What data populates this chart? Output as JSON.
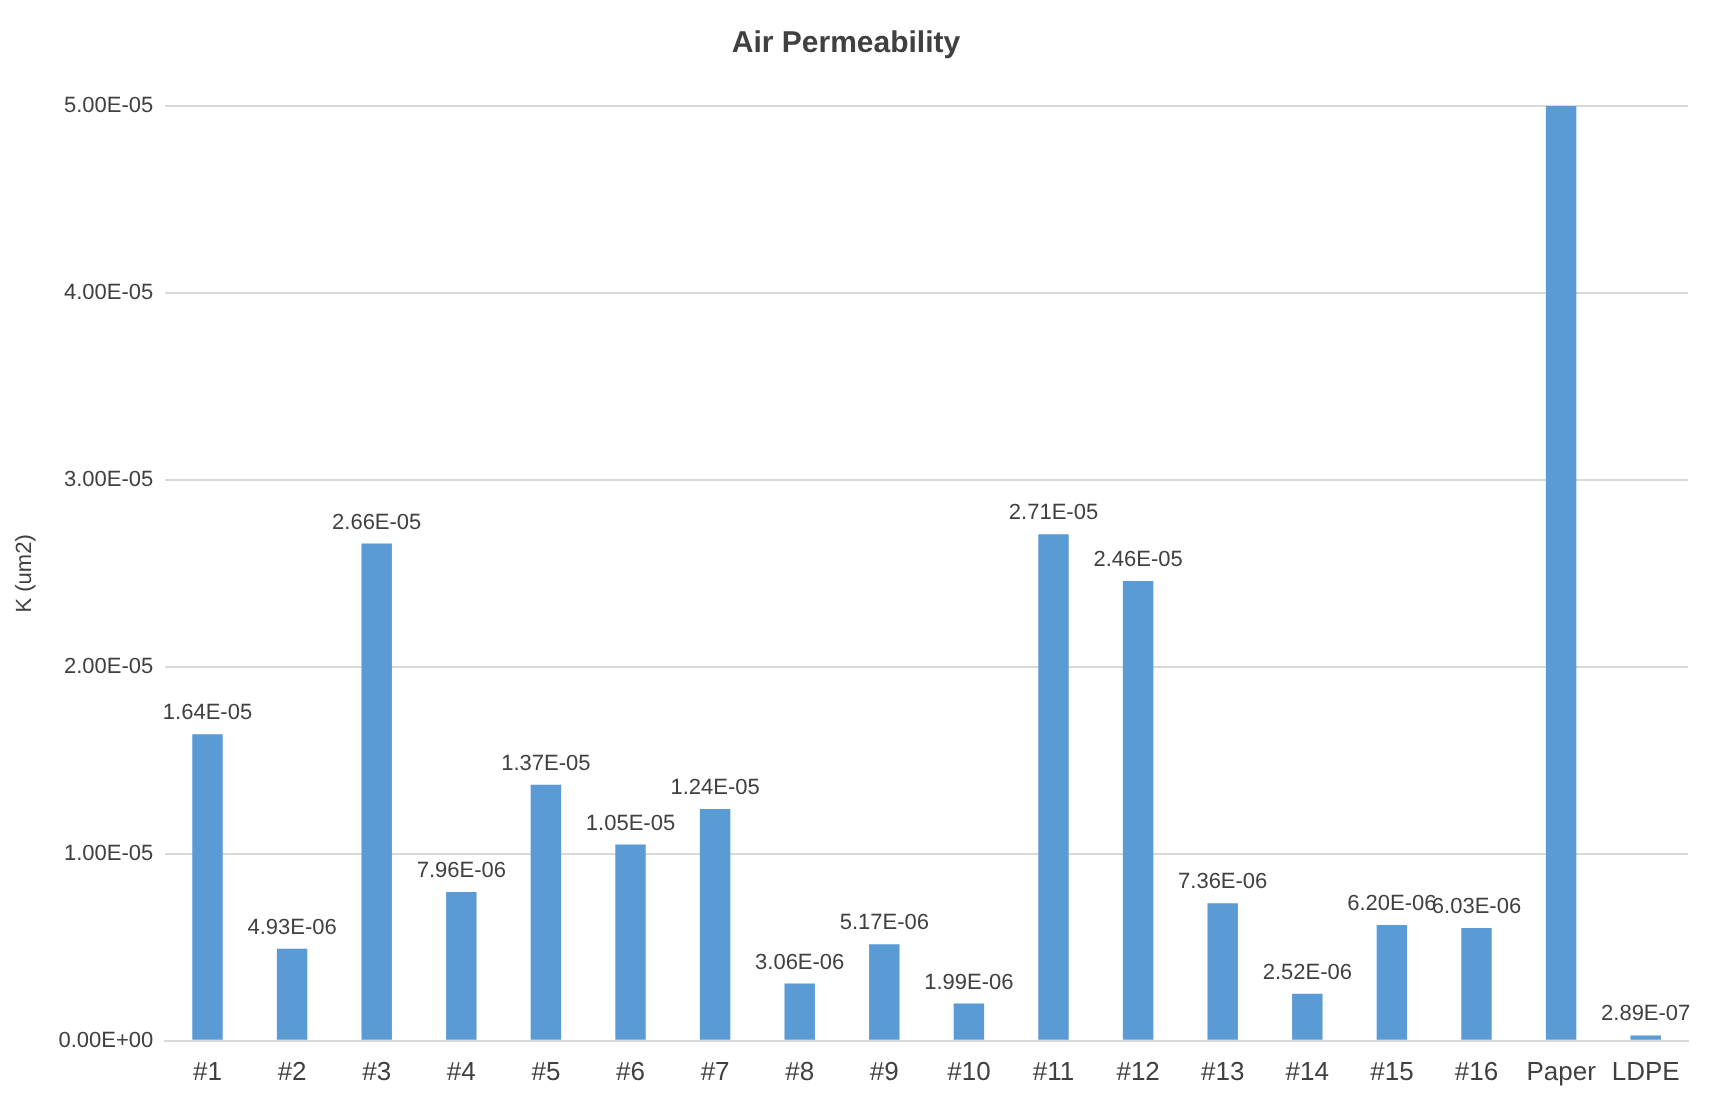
{
  "chart_data": {
    "type": "bar",
    "title": "Air Permeability",
    "ylabel": "K (um2)",
    "categories": [
      "#1",
      "#2",
      "#3",
      "#4",
      "#5",
      "#6",
      "#7",
      "#8",
      "#9",
      "#10",
      "#11",
      "#12",
      "#13",
      "#14",
      "#15",
      "#16",
      "Paper",
      "LDPE"
    ],
    "values": [
      1.64e-05,
      4.93e-06,
      2.66e-05,
      7.96e-06,
      1.37e-05,
      1.05e-05,
      1.24e-05,
      3.06e-06,
      5.17e-06,
      1.99e-06,
      2.71e-05,
      2.46e-05,
      7.36e-06,
      2.52e-06,
      6.2e-06,
      6.03e-06,
      5e-05,
      2.89e-07
    ],
    "value_labels": [
      "1.64E-05",
      "4.93E-06",
      "2.66E-05",
      "7.96E-06",
      "1.37E-05",
      "1.05E-05",
      "1.24E-05",
      "3.06E-06",
      "5.17E-06",
      "1.99E-06",
      "2.71E-05",
      "2.46E-05",
      "7.36E-06",
      "2.52E-06",
      "6.20E-06",
      "6.03E-06",
      null,
      "2.89E-07"
    ],
    "color": "#5b9bd5",
    "ylim": [
      0,
      5e-05
    ],
    "yticks": [
      {
        "value": 0,
        "label": "0.00E+00"
      },
      {
        "value": 1e-05,
        "label": "1.00E-05"
      },
      {
        "value": 2e-05,
        "label": "2.00E-05"
      },
      {
        "value": 3e-05,
        "label": "3.00E-05"
      },
      {
        "value": 4e-05,
        "label": "4.00E-05"
      },
      {
        "value": 5e-05,
        "label": "5.00E-05"
      }
    ],
    "grid": "y",
    "legend": false
  }
}
